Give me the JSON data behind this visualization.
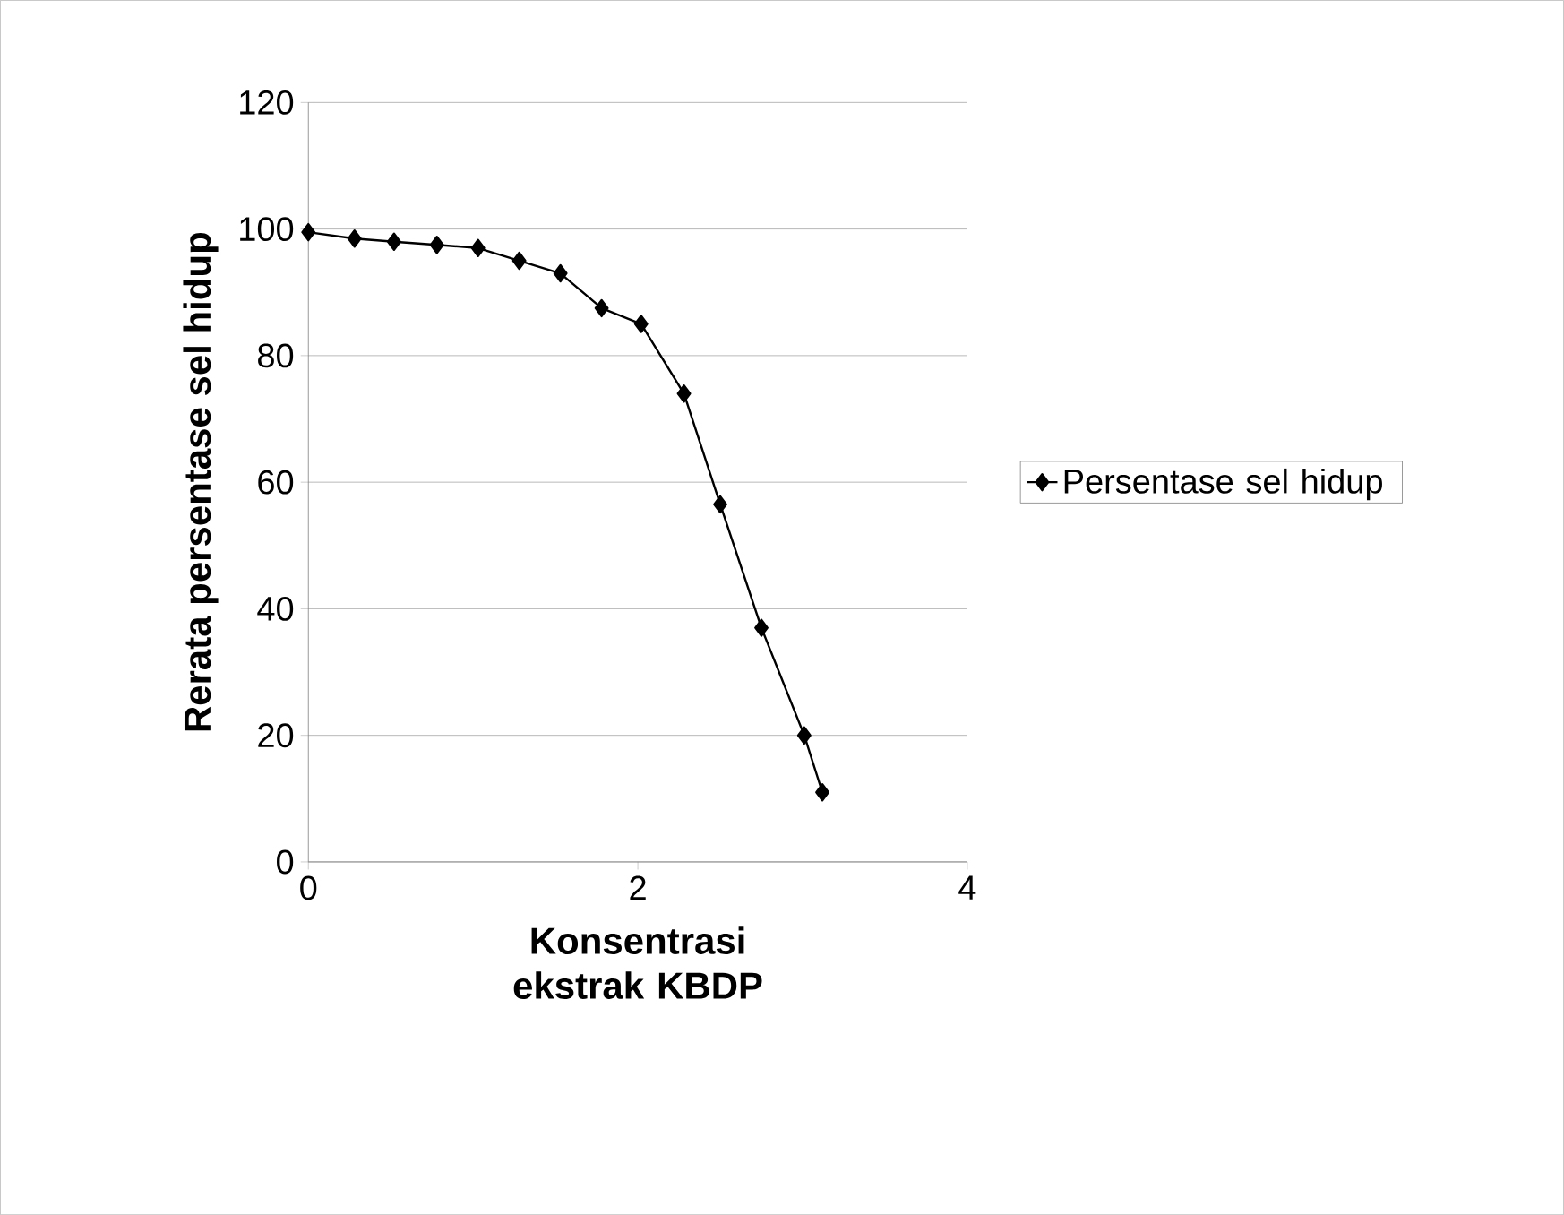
{
  "chart_data": {
    "type": "line",
    "xlabel": "Konsentrasi ekstrak KBDP",
    "ylabel": "Rerata persentase sel hidup",
    "x": [
      0,
      0.28,
      0.52,
      0.78,
      1.03,
      1.28,
      1.53,
      1.78,
      2.02,
      2.28,
      2.5,
      2.75,
      3.01,
      3.12
    ],
    "series": [
      {
        "name": "Persentase sel hidup",
        "color": "#000000",
        "values": [
          99.5,
          98.5,
          98,
          97.5,
          97,
          95,
          93,
          87.5,
          85,
          74,
          56.5,
          37,
          20,
          11
        ]
      }
    ],
    "xlim": [
      0,
      4
    ],
    "ylim": [
      0,
      120
    ],
    "xticks": [
      0,
      2,
      4
    ],
    "yticks": [
      0,
      20,
      40,
      60,
      80,
      100,
      120
    ],
    "grid": "y",
    "legend": "right",
    "marker": "diamond",
    "line_style": "solid"
  }
}
